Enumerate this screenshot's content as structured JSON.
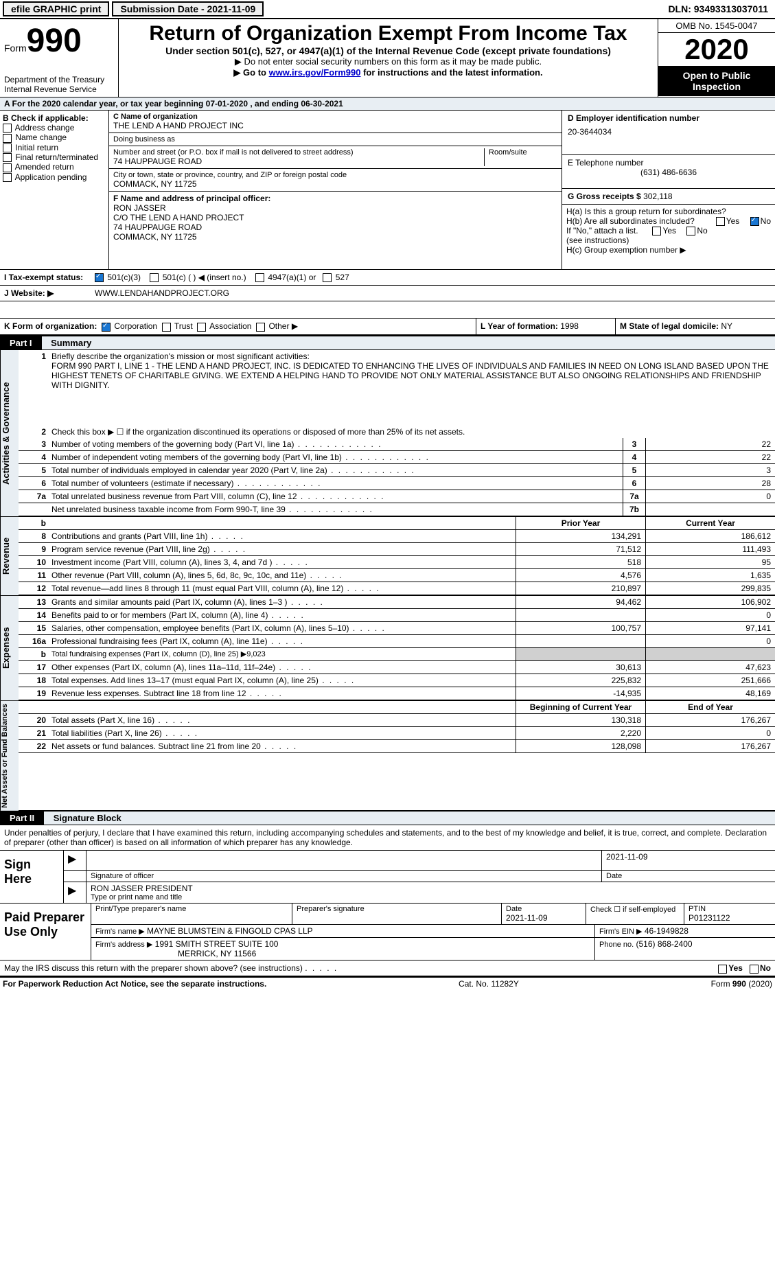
{
  "topbar": {
    "efile": "efile GRAPHIC print",
    "sub_lbl": "Submission Date - 2021-11-09",
    "dln": "DLN: 93493313037011"
  },
  "header": {
    "form_word": "Form",
    "form_no": "990",
    "dept": "Department of the Treasury\nInternal Revenue Service",
    "title": "Return of Organization Exempt From Income Tax",
    "subtitle": "Under section 501(c), 527, or 4947(a)(1) of the Internal Revenue Code (except private foundations)",
    "note1": "▶ Do not enter social security numbers on this form as it may be made public.",
    "note2_pre": "▶ Go to ",
    "note2_link": "www.irs.gov/Form990",
    "note2_post": " for instructions and the latest information.",
    "omb": "OMB No. 1545-0047",
    "year": "2020",
    "open": "Open to Public Inspection"
  },
  "sectionA": "A   For the 2020 calendar year, or tax year beginning 07-01-2020   , and ending 06-30-2021",
  "colB": {
    "hdr": "B Check if applicable:",
    "items": [
      "Address change",
      "Name change",
      "Initial return",
      "Final return/terminated",
      "Amended return",
      "Application pending"
    ]
  },
  "colC": {
    "c_lbl": "C Name of organization",
    "c_val": "THE LEND A HAND PROJECT INC",
    "dba_lbl": "Doing business as",
    "dba_val": "",
    "addr_lbl": "Number and street (or P.O. box if mail is not delivered to street address)",
    "addr_val": "74 HAUPPAUGE ROAD",
    "room_lbl": "Room/suite",
    "city_lbl": "City or town, state or province, country, and ZIP or foreign postal code",
    "city_val": "COMMACK, NY  11725",
    "f_lbl": "F Name and address of principal officer:",
    "f_name": "RON JASSER",
    "f_l1": "C/O THE LEND A HAND PROJECT",
    "f_l2": "74 HAUPPAUGE ROAD",
    "f_l3": "COMMACK, NY  11725"
  },
  "colD": {
    "d_lbl": "D Employer identification number",
    "d_val": "20-3644034",
    "e_lbl": "E Telephone number",
    "e_val": "(631) 486-6636",
    "g_lbl": "G Gross receipts $",
    "g_val": "302,118"
  },
  "rowH": {
    "ha_lbl": "H(a)  Is this a group return for subordinates?",
    "hb_lbl": "H(b)  Are all subordinates included?",
    "hb_note": "If \"No,\" attach a list. (see instructions)",
    "hc_lbl": "H(c)  Group exemption number ▶",
    "yes": "Yes",
    "no": "No"
  },
  "rowI": {
    "lbl": "I   Tax-exempt status:",
    "o1": "501(c)(3)",
    "o2": "501(c) (   ) ◀ (insert no.)",
    "o3": "4947(a)(1) or",
    "o4": "527"
  },
  "rowJ": {
    "lbl": "J   Website: ▶",
    "val": "WWW.LENDAHANDPROJECT.ORG"
  },
  "rowK": {
    "lbl": "K Form of organization:",
    "o1": "Corporation",
    "o2": "Trust",
    "o3": "Association",
    "o4": "Other ▶",
    "l_lbl": "L Year of formation:",
    "l_val": "1998",
    "m_lbl": "M State of legal domicile:",
    "m_val": "NY"
  },
  "part1": {
    "tag": "Part I",
    "title": "Summary"
  },
  "activities": {
    "tab": "Activities & Governance",
    "r1_num": "1",
    "r1_lbl": "Briefly describe the organization's mission or most significant activities:",
    "r1_val": "FORM 990 PART I, LINE 1 - THE LEND A HAND PROJECT, INC. IS DEDICATED TO ENHANCING THE LIVES OF INDIVIDUALS AND FAMILIES IN NEED ON LONG ISLAND BASED UPON THE HIGHEST TENETS OF CHARITABLE GIVING. WE EXTEND A HELPING HAND TO PROVIDE NOT ONLY MATERIAL ASSISTANCE BUT ALSO ONGOING RELATIONSHIPS AND FRIENDSHIP WITH DIGNITY.",
    "r2": "Check this box ▶ ☐  if the organization discontinued its operations or disposed of more than 25% of its net assets.",
    "rows": [
      {
        "n": "3",
        "d": "Number of voting members of the governing body (Part VI, line 1a)",
        "k": "3",
        "v": "22"
      },
      {
        "n": "4",
        "d": "Number of independent voting members of the governing body (Part VI, line 1b)",
        "k": "4",
        "v": "22"
      },
      {
        "n": "5",
        "d": "Total number of individuals employed in calendar year 2020 (Part V, line 2a)",
        "k": "5",
        "v": "3"
      },
      {
        "n": "6",
        "d": "Total number of volunteers (estimate if necessary)",
        "k": "6",
        "v": "28"
      },
      {
        "n": "7a",
        "d": "Total unrelated business revenue from Part VIII, column (C), line 12",
        "k": "7a",
        "v": "0"
      },
      {
        "n": "",
        "d": "Net unrelated business taxable income from Form 990-T, line 39",
        "k": "7b",
        "v": ""
      }
    ]
  },
  "revenue": {
    "tab": "Revenue",
    "hdr_b": "b",
    "hdr_prior": "Prior Year",
    "hdr_cur": "Current Year",
    "rows": [
      {
        "n": "8",
        "d": "Contributions and grants (Part VIII, line 1h)",
        "p": "134,291",
        "c": "186,612"
      },
      {
        "n": "9",
        "d": "Program service revenue (Part VIII, line 2g)",
        "p": "71,512",
        "c": "111,493"
      },
      {
        "n": "10",
        "d": "Investment income (Part VIII, column (A), lines 3, 4, and 7d )",
        "p": "518",
        "c": "95"
      },
      {
        "n": "11",
        "d": "Other revenue (Part VIII, column (A), lines 5, 6d, 8c, 9c, 10c, and 11e)",
        "p": "4,576",
        "c": "1,635"
      },
      {
        "n": "12",
        "d": "Total revenue—add lines 8 through 11 (must equal Part VIII, column (A), line 12)",
        "p": "210,897",
        "c": "299,835"
      }
    ]
  },
  "expenses": {
    "tab": "Expenses",
    "rows": [
      {
        "n": "13",
        "d": "Grants and similar amounts paid (Part IX, column (A), lines 1–3 )",
        "p": "94,462",
        "c": "106,902"
      },
      {
        "n": "14",
        "d": "Benefits paid to or for members (Part IX, column (A), line 4)",
        "p": "",
        "c": "0"
      },
      {
        "n": "15",
        "d": "Salaries, other compensation, employee benefits (Part IX, column (A), lines 5–10)",
        "p": "100,757",
        "c": "97,141"
      },
      {
        "n": "16a",
        "d": "Professional fundraising fees (Part IX, column (A), line 11e)",
        "p": "",
        "c": "0"
      }
    ],
    "r16b_n": "b",
    "r16b_d": "Total fundraising expenses (Part IX, column (D), line 25) ▶9,023",
    "rows2": [
      {
        "n": "17",
        "d": "Other expenses (Part IX, column (A), lines 11a–11d, 11f–24e)",
        "p": "30,613",
        "c": "47,623"
      },
      {
        "n": "18",
        "d": "Total expenses. Add lines 13–17 (must equal Part IX, column (A), line 25)",
        "p": "225,832",
        "c": "251,666"
      },
      {
        "n": "19",
        "d": "Revenue less expenses. Subtract line 18 from line 12",
        "p": "-14,935",
        "c": "48,169"
      }
    ]
  },
  "netassets": {
    "tab": "Net Assets or Fund Balances",
    "hdr_b": "Beginning of Current Year",
    "hdr_e": "End of Year",
    "rows": [
      {
        "n": "20",
        "d": "Total assets (Part X, line 16)",
        "p": "130,318",
        "c": "176,267"
      },
      {
        "n": "21",
        "d": "Total liabilities (Part X, line 26)",
        "p": "2,220",
        "c": "0"
      },
      {
        "n": "22",
        "d": "Net assets or fund balances. Subtract line 21 from line 20",
        "p": "128,098",
        "c": "176,267"
      }
    ]
  },
  "part2": {
    "tag": "Part II",
    "title": "Signature Block"
  },
  "sig": {
    "penal": "Under penalties of perjury, I declare that I have examined this return, including accompanying schedules and statements, and to the best of my knowledge and belief, it is true, correct, and complete. Declaration of preparer (other than officer) is based on all information of which preparer has any knowledge.",
    "sign_here": "Sign Here",
    "sig_off": "Signature of officer",
    "date": "Date",
    "date_v": "2021-11-09",
    "name_t": "RON JASSER  PRESIDENT",
    "name_lbl": "Type or print name and title",
    "paid": "Paid Preparer Use Only",
    "prep_name_lbl": "Print/Type preparer's name",
    "prep_sig_lbl": "Preparer's signature",
    "prep_date_v": "2021-11-09",
    "check_if": "Check ☐ if self-employed",
    "ptin_lbl": "PTIN",
    "ptin_v": "P01231122",
    "firm_name_lbl": "Firm's name   ▶",
    "firm_name": "MAYNE BLUMSTEIN & FINGOLD CPAS LLP",
    "firm_ein_lbl": "Firm's EIN ▶",
    "firm_ein": "46-1949828",
    "firm_addr_lbl": "Firm's address ▶",
    "firm_addr": "1991 SMITH STREET SUITE 100",
    "firm_city": "MERRICK, NY  11566",
    "phone_lbl": "Phone no.",
    "phone": "(516) 868-2400",
    "discuss": "May the IRS discuss this return with the preparer shown above? (see instructions)",
    "yes": "Yes",
    "no": "No"
  },
  "footer": {
    "l": "For Paperwork Reduction Act Notice, see the separate instructions.",
    "c": "Cat. No. 11282Y",
    "r": "Form 990 (2020)"
  }
}
